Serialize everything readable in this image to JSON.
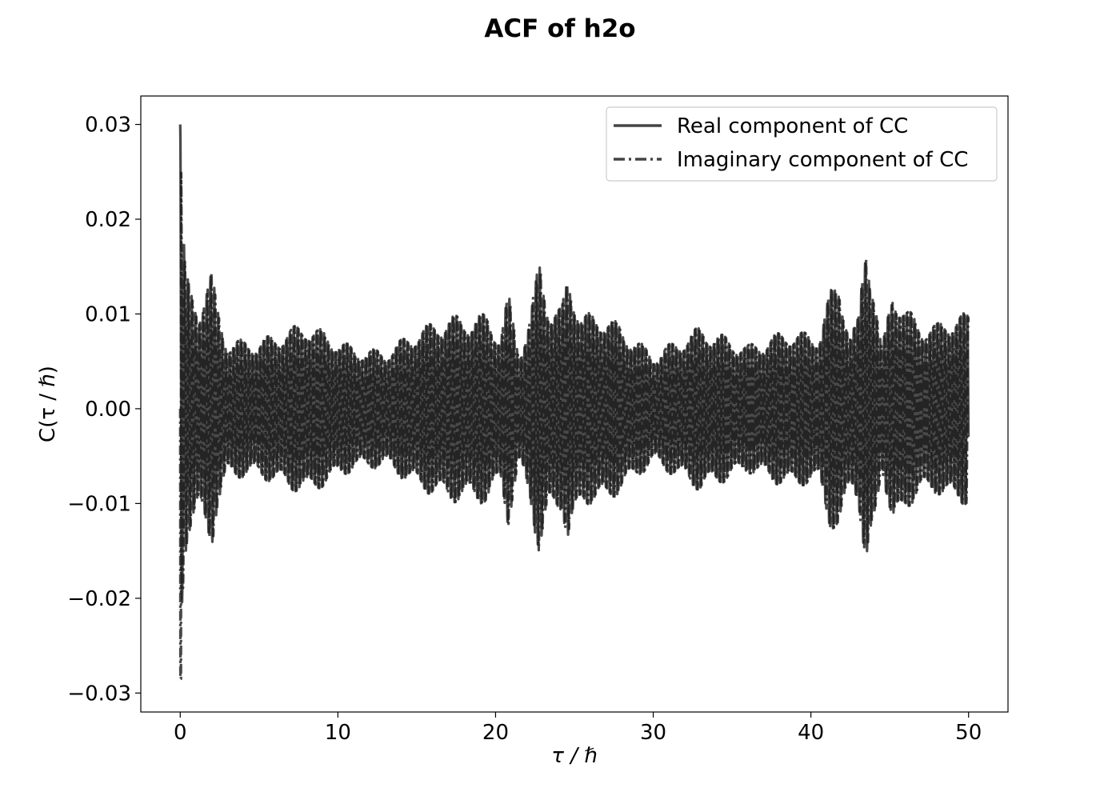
{
  "chart_data": {
    "type": "line",
    "title": "ACF of h2o",
    "xlabel": "τ / ℏ",
    "ylabel": "C(τ / ℏ)",
    "xlim": [
      -2.5,
      52.5
    ],
    "ylim": [
      -0.032,
      0.033
    ],
    "xticks": [
      0,
      10,
      20,
      30,
      40,
      50
    ],
    "xtick_labels": [
      "0",
      "10",
      "20",
      "30",
      "40",
      "50"
    ],
    "yticks": [
      0.03,
      0.02,
      0.01,
      0.0,
      -0.01,
      -0.02,
      -0.03
    ],
    "ytick_labels": [
      "0.03",
      "0.02",
      "0.01",
      "0.00",
      "−0.01",
      "−0.02",
      "−0.03"
    ],
    "grid": false,
    "legend_position": "top-right",
    "line_color": "#1a1a1a",
    "series": [
      {
        "name": "Real component of CC",
        "style": "solid",
        "oscillation_period": 0.24,
        "envelope_x": [
          0,
          0.02,
          0.1,
          0.3,
          0.5,
          0.8,
          1.2,
          1.6,
          2.0,
          2.3,
          3,
          5,
          8,
          11,
          13,
          15,
          17,
          18.5,
          19.5,
          20.3,
          20.8,
          21.5,
          22.2,
          22.8,
          23.4,
          24.2,
          24.6,
          25.5,
          27,
          30,
          33,
          36,
          38.5,
          39.5,
          40.5,
          41.2,
          41.8,
          42.5,
          43,
          43.5,
          44,
          44.5,
          45.2,
          46,
          47,
          48,
          49,
          50
        ],
        "envelope_y": [
          0.03,
          0.03,
          0.02,
          0.014,
          0.012,
          0.011,
          0.01,
          0.012,
          0.013,
          0.01,
          0.0065,
          0.0065,
          0.0082,
          0.0058,
          0.0055,
          0.0075,
          0.0088,
          0.0088,
          0.009,
          0.007,
          0.011,
          0.0055,
          0.009,
          0.014,
          0.01,
          0.0095,
          0.013,
          0.009,
          0.009,
          0.0052,
          0.0078,
          0.006,
          0.0075,
          0.0072,
          0.0072,
          0.011,
          0.0125,
          0.0072,
          0.0085,
          0.017,
          0.012,
          0.0055,
          0.012,
          0.0095,
          0.0082,
          0.008,
          0.009,
          0.009
        ]
      },
      {
        "name": "Imaginary component of CC",
        "style": "dashdot",
        "oscillation_period": 0.24,
        "envelope_x": [
          0,
          0.02,
          0.1,
          0.3,
          0.5,
          0.8,
          1.2,
          1.6,
          2.0,
          2.3,
          3,
          5,
          8,
          11,
          13,
          15,
          17,
          18.5,
          19.5,
          20.3,
          20.8,
          21.5,
          22.2,
          22.8,
          23.4,
          24.2,
          24.6,
          25.5,
          27,
          30,
          33,
          36,
          38.5,
          39.5,
          40.5,
          41.2,
          41.8,
          42.5,
          43,
          43.5,
          44,
          44.5,
          45.2,
          46,
          47,
          48,
          49,
          50
        ],
        "envelope_y": [
          0.0,
          0.0285,
          0.02,
          0.014,
          0.012,
          0.011,
          0.01,
          0.012,
          0.013,
          0.01,
          0.0065,
          0.0065,
          0.0082,
          0.0058,
          0.0055,
          0.0075,
          0.0088,
          0.0088,
          0.009,
          0.007,
          0.011,
          0.0055,
          0.009,
          0.0143,
          0.01,
          0.0095,
          0.013,
          0.009,
          0.009,
          0.0052,
          0.0078,
          0.006,
          0.0075,
          0.0072,
          0.0072,
          0.011,
          0.0125,
          0.0072,
          0.0085,
          0.0168,
          0.012,
          0.0055,
          0.012,
          0.0095,
          0.0082,
          0.008,
          0.009,
          0.009
        ]
      }
    ]
  }
}
